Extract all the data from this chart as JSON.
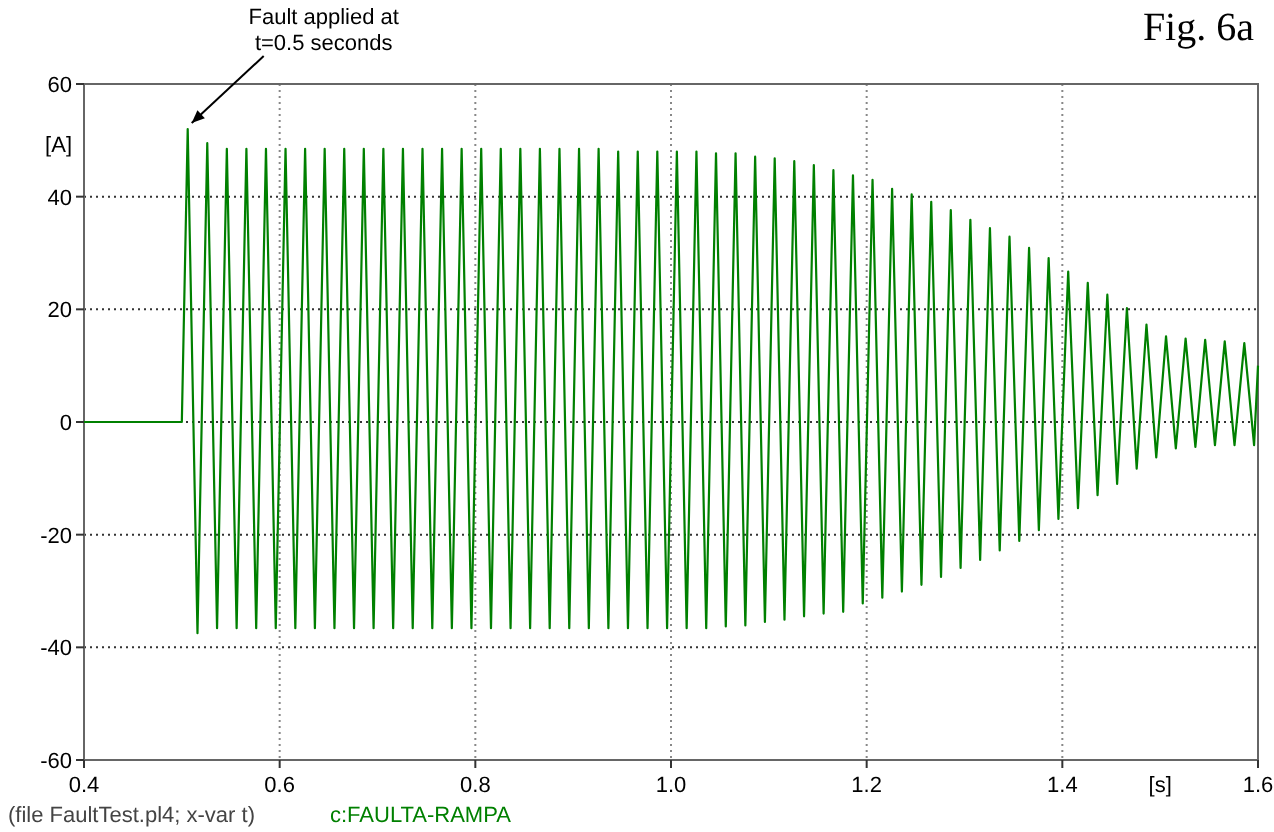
{
  "chart_data": {
    "type": "line",
    "title": "Fig. 6a",
    "xlabel": "[s]",
    "ylabel": "[A]",
    "annotations": [
      {
        "text": "Fault applied at\nt=0.5 seconds",
        "x": 0.506,
        "y": 52
      },
      "(file FaultTest.pl4; x-var t)"
    ],
    "x": [
      0.4,
      0.5,
      0.506,
      0.516,
      0.526,
      0.536,
      0.546,
      0.556,
      0.566,
      0.576,
      0.586,
      0.596,
      0.606,
      0.616,
      0.626,
      0.636,
      0.646,
      0.656,
      0.666,
      0.676,
      0.686,
      0.696,
      0.706,
      0.716,
      0.726,
      0.736,
      0.746,
      0.756,
      0.766,
      0.776,
      0.786,
      0.796,
      0.806,
      0.816,
      0.826,
      0.836,
      0.846,
      0.856,
      0.866,
      0.876,
      0.886,
      0.896,
      0.906,
      0.916,
      0.926,
      0.936,
      0.946,
      0.956,
      0.966,
      0.976,
      0.986,
      0.996,
      1.006,
      1.016,
      1.026,
      1.036,
      1.046,
      1.056,
      1.066,
      1.076,
      1.086,
      1.096,
      1.106,
      1.116,
      1.126,
      1.136,
      1.146,
      1.156,
      1.166,
      1.176,
      1.186,
      1.196,
      1.206,
      1.216,
      1.226,
      1.236,
      1.246,
      1.256,
      1.266,
      1.276,
      1.286,
      1.296,
      1.306,
      1.316,
      1.326,
      1.336,
      1.346,
      1.356,
      1.366,
      1.376,
      1.386,
      1.396,
      1.406,
      1.416,
      1.426,
      1.436,
      1.446,
      1.456,
      1.466,
      1.476,
      1.486,
      1.496,
      1.506,
      1.516,
      1.526,
      1.536,
      1.546,
      1.556,
      1.566,
      1.576,
      1.586,
      1.596,
      1.6
    ],
    "series": [
      {
        "name": "c:FAULTA-RAMPA",
        "color": "#008000",
        "values": [
          0,
          0,
          52,
          -37.5,
          49.5,
          -36.6,
          48.5,
          -36.6,
          48.5,
          -36.6,
          48.5,
          -36.6,
          48.5,
          -36.6,
          48.5,
          -36.6,
          48.5,
          -36.6,
          48.5,
          -36.6,
          48.5,
          -36.6,
          48.5,
          -36.6,
          48.5,
          -36.6,
          48.5,
          -36.6,
          48.5,
          -36.6,
          48.5,
          -36.6,
          48.5,
          -36.6,
          48.5,
          -36.6,
          48.5,
          -36.6,
          48.5,
          -36.6,
          48.5,
          -36.6,
          48.5,
          -36.6,
          48.5,
          -36.6,
          48.0,
          -36.6,
          48.0,
          -36.6,
          48.0,
          -36.6,
          48.0,
          -36.6,
          48.0,
          -36.6,
          47.7,
          -36.3,
          47.7,
          -36.1,
          47.1,
          -35.5,
          46.8,
          -35.1,
          46.3,
          -34.5,
          45.6,
          -34.0,
          44.7,
          -33.7,
          43.8,
          -32.2,
          43.0,
          -31.2,
          41.4,
          -30.1,
          40.4,
          -28.9,
          39.1,
          -27.5,
          37.6,
          -25.9,
          35.9,
          -24.5,
          34.4,
          -22.8,
          32.9,
          -21.1,
          30.9,
          -19.2,
          29.1,
          -17.2,
          26.7,
          -15.3,
          24.7,
          -13.0,
          22.6,
          -11.0,
          20.2,
          -8.3,
          17.3,
          -6.3,
          15.2,
          -4.7,
          14.8,
          -4.4,
          14.6,
          -4.1,
          14.3,
          -4.1,
          14.0,
          -4.1,
          10
        ]
      }
    ],
    "xlim": [
      0.4,
      1.6
    ],
    "ylim": [
      -60,
      60
    ],
    "xticks": [
      0.4,
      0.6,
      0.8,
      {
        "value": 1,
        "label": "1.0"
      },
      1.2,
      1.4,
      1.6
    ],
    "yticks": [
      -60,
      -40,
      -20,
      0,
      20,
      40,
      60
    ],
    "grid": true,
    "legend": "bottom left"
  }
}
